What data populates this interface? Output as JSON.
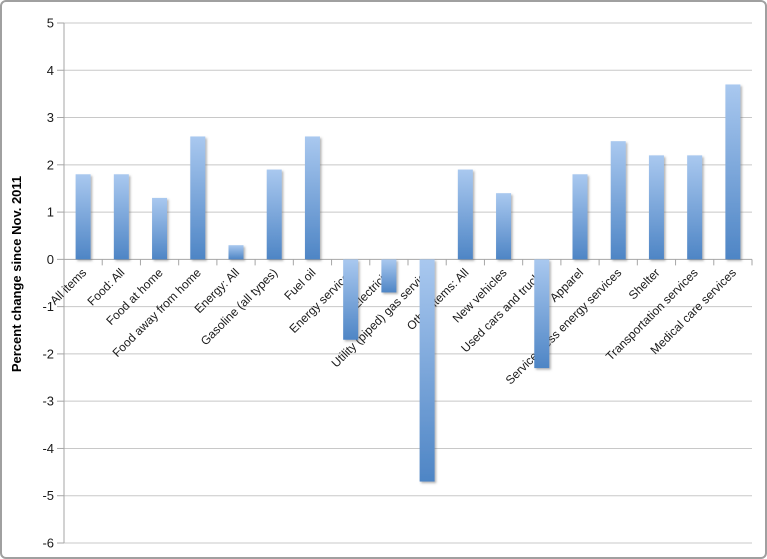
{
  "frame": {
    "background": "#ffffff",
    "border_color": "#a0a0a0"
  },
  "chart_data": {
    "type": "bar",
    "title": "",
    "xlabel": "",
    "ylabel": "Percent change since Nov. 2011",
    "ylim": [
      -6,
      5
    ],
    "yticks": [
      5,
      4,
      3,
      2,
      1,
      0,
      -1,
      -2,
      -3,
      -4,
      -5,
      -6
    ],
    "grid": true,
    "legend_position": "none",
    "categories": [
      "All items",
      "Food: All",
      "Food at home",
      "Food away from home",
      "Energy: All",
      "Gasoline (all types)",
      "Fuel oil",
      "Energy services",
      "Electricity",
      "Utility (piped) gas service",
      "Other items: All",
      "New vehicles",
      "Used cars and trucks",
      "Apparel",
      "Services less energy services",
      "Shelter",
      "Transportation services",
      "Medical care services"
    ],
    "values": [
      1.8,
      1.8,
      1.3,
      2.6,
      0.3,
      1.9,
      2.6,
      -1.7,
      -0.7,
      -4.7,
      1.9,
      1.4,
      -2.3,
      1.8,
      2.5,
      2.2,
      2.2,
      3.7
    ],
    "colors": {
      "bar_gradient_top": "#a9c8ef",
      "bar_gradient_bottom": "#4e85c5",
      "gridline": "#c8c8c8",
      "axis": "#a6a6a6",
      "text": "#1a1a1a"
    }
  }
}
